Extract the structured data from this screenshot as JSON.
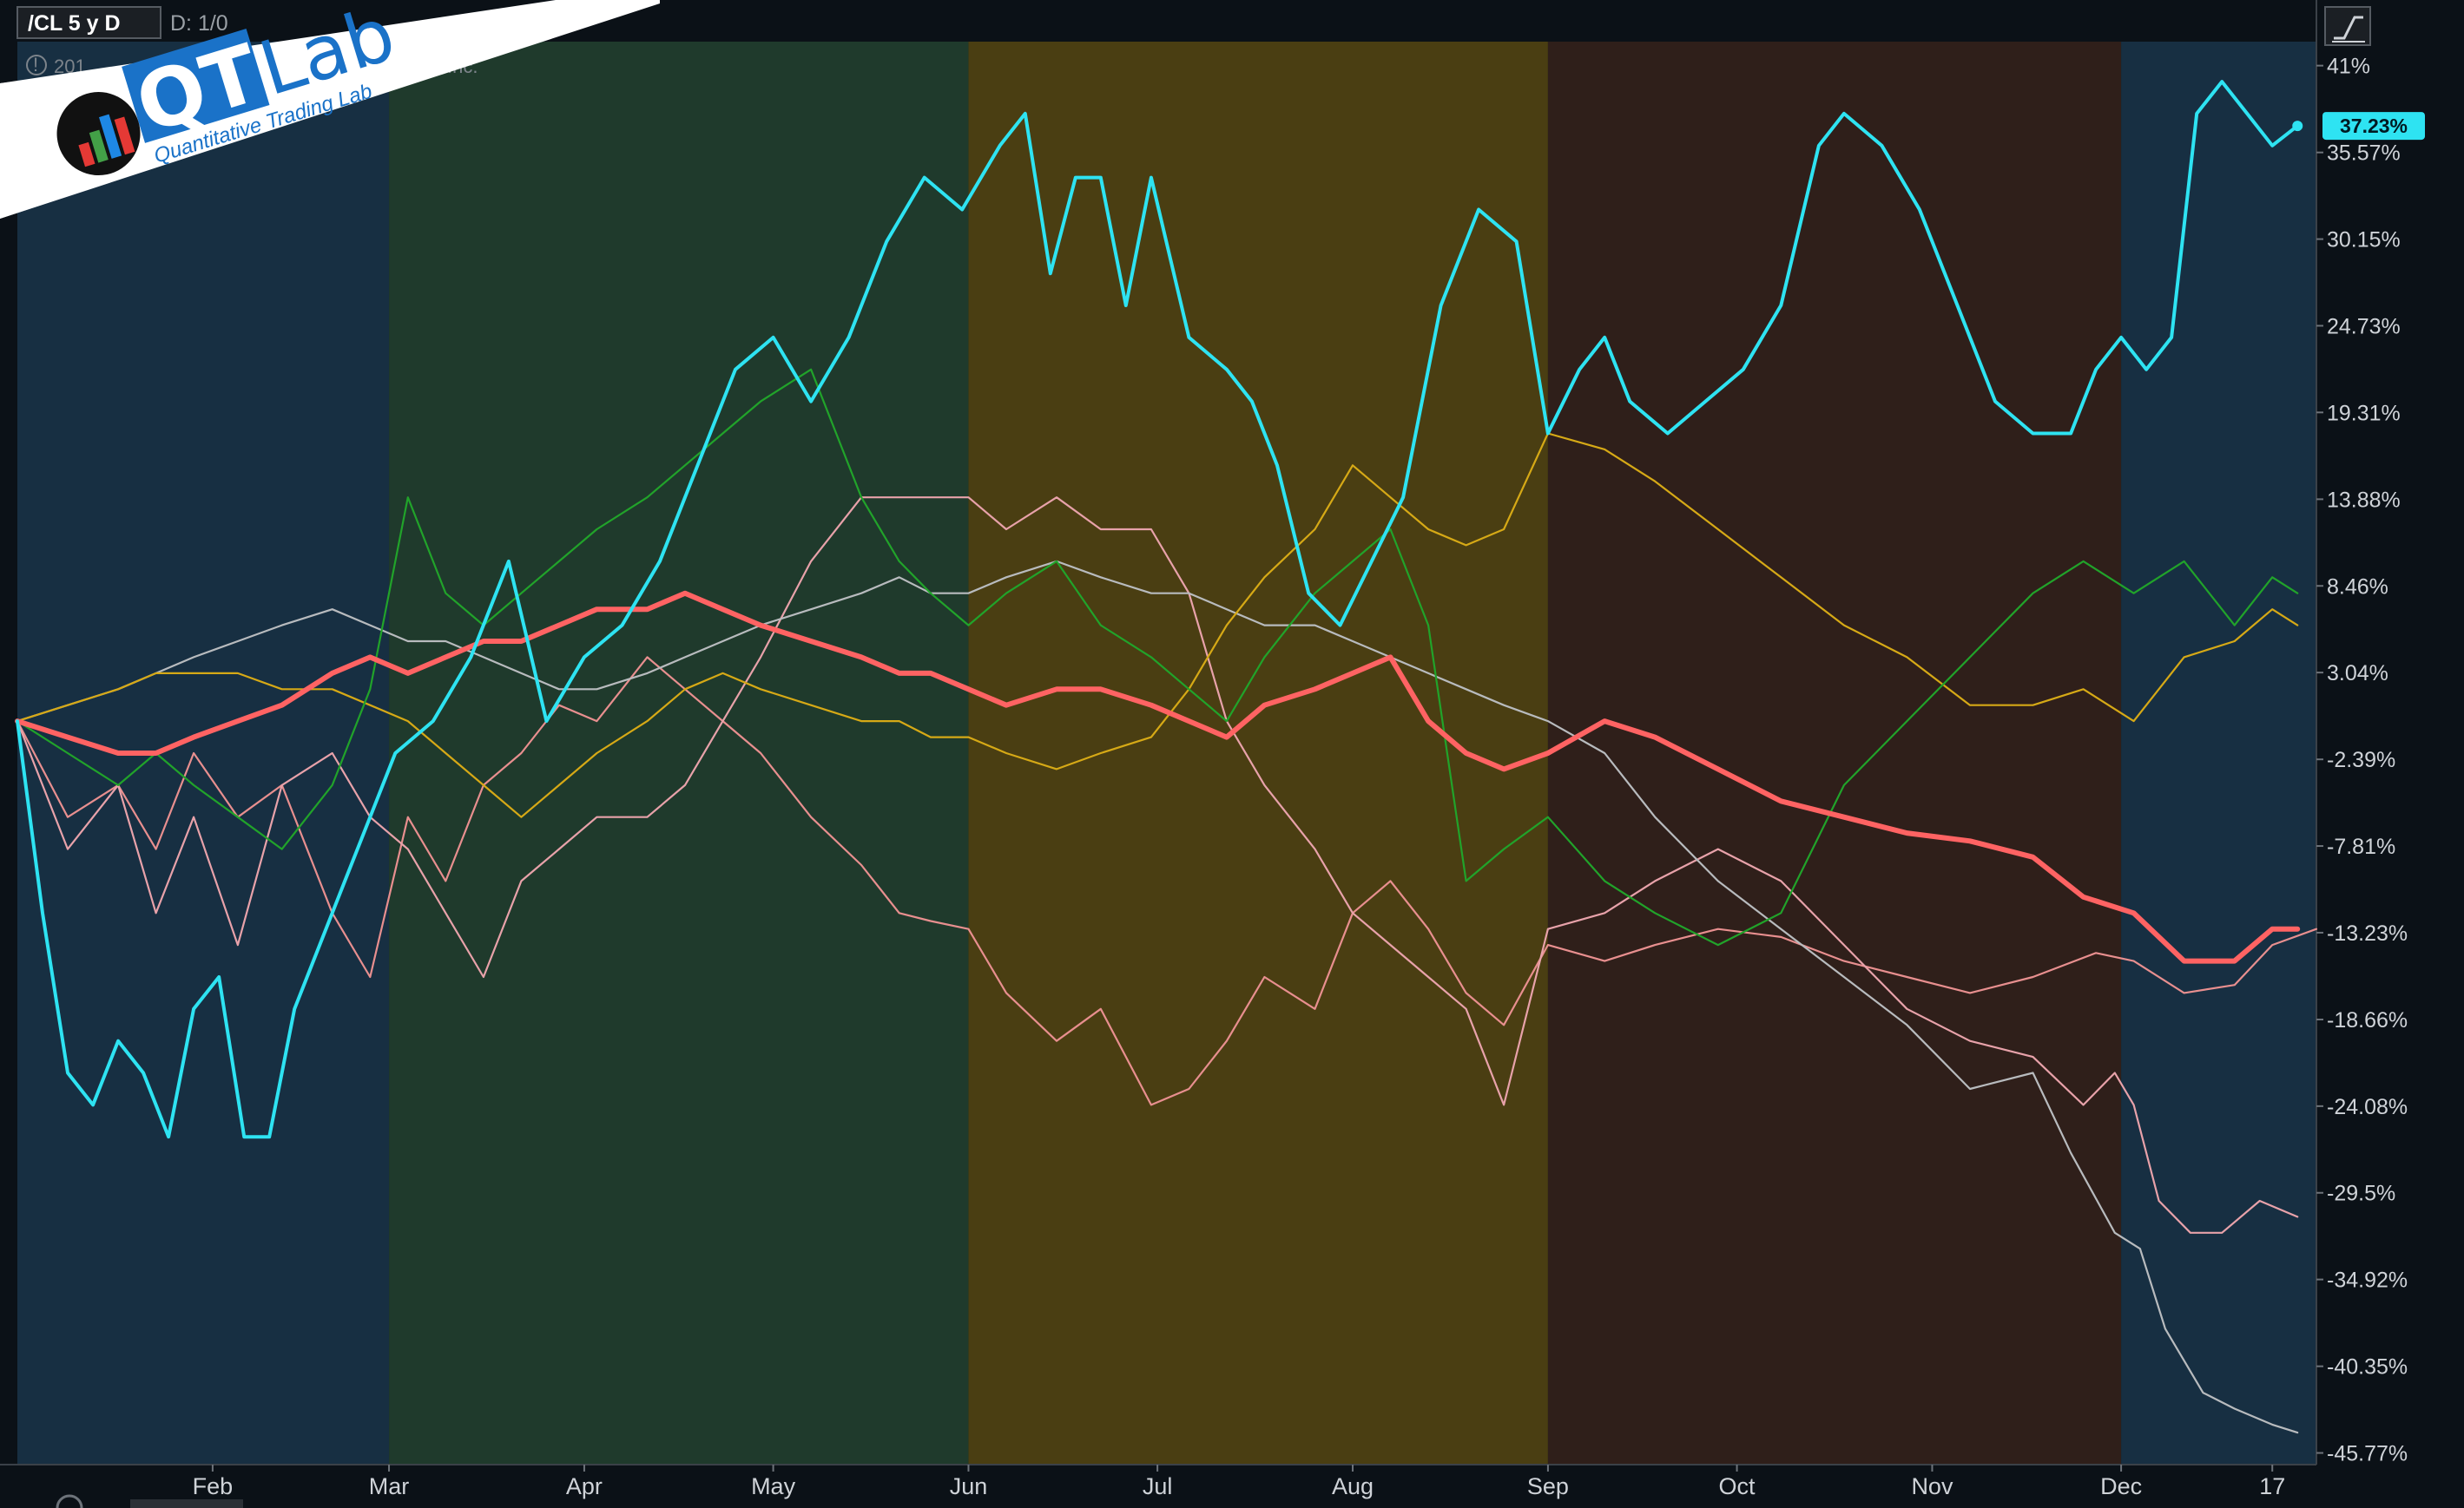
{
  "header": {
    "symbol": "/CL 5 y D",
    "aggregation": "D: 1/0",
    "info_text": "201",
    "info_suffix": "Inc."
  },
  "logo": {
    "brand_qt": "QT",
    "brand_lab": "Lab",
    "tagline": "Quantitative Trading Lab"
  },
  "colors": {
    "background": "#0b1117",
    "season_winter": "#172f42",
    "season_spring": "#1f3a2c",
    "season_summer": "#4a3e12",
    "season_fall": "#2f1f1a",
    "axis_text": "#cfd3d8"
  },
  "chart_data": {
    "type": "line",
    "title": "",
    "xlabel": "",
    "ylabel": "",
    "x_tick_labels": [
      "Feb",
      "Mar",
      "Apr",
      "May",
      "Jun",
      "Jul",
      "Aug",
      "Sep",
      "Oct",
      "Nov",
      "Dec",
      "17"
    ],
    "y_tick_labels": [
      "41%",
      "35.57%",
      "30.15%",
      "24.73%",
      "19.31%",
      "13.88%",
      "8.46%",
      "3.04%",
      "-2.39%",
      "-7.81%",
      "-13.23%",
      "-18.66%",
      "-24.08%",
      "-29.5%",
      "-34.92%",
      "-40.35%",
      "-45.77%"
    ],
    "ylim": [
      -46.5,
      42.5
    ],
    "grid": false,
    "legend": "none",
    "last_value_label": "37.23%",
    "season_bands": [
      {
        "season": "winter",
        "from_day": 0,
        "to_day": 59
      },
      {
        "season": "spring",
        "from_day": 59,
        "to_day": 151
      },
      {
        "season": "summer",
        "from_day": 151,
        "to_day": 243
      },
      {
        "season": "fall",
        "from_day": 243,
        "to_day": 334
      },
      {
        "season": "winter",
        "from_day": 334,
        "to_day": 365
      }
    ],
    "series": [
      {
        "color": "#e88f8f",
        "width": 2.2,
        "x": [
          0,
          8,
          16,
          22,
          28,
          35,
          42,
          50,
          56,
          62,
          68,
          74,
          80,
          86,
          92,
          100,
          106,
          112,
          118,
          126,
          134,
          140,
          145,
          151,
          157,
          165,
          172,
          180,
          186,
          192,
          198,
          206,
          212,
          218,
          224,
          230,
          236,
          243,
          252,
          260,
          270,
          280,
          290,
          300,
          310,
          320,
          330,
          336,
          344,
          352,
          358,
          365
        ],
        "values": [
          0,
          -6,
          -4,
          -8,
          -2,
          -6,
          -4,
          -12,
          -16,
          -6,
          -10,
          -4,
          -2,
          1,
          0,
          4,
          2,
          0,
          -2,
          -6,
          -9,
          -12,
          -12.5,
          -13,
          -17,
          -20,
          -18,
          -24,
          -23,
          -20,
          -16,
          -18,
          -12,
          -10,
          -13,
          -17,
          -19,
          -14,
          -15,
          -14,
          -13,
          -13.5,
          -15,
          -16,
          -17,
          -16,
          -14.5,
          -15,
          -17,
          -16.5,
          -14,
          -13
        ]
      },
      {
        "color": "#e8a2aa",
        "width": 2.2,
        "x": [
          0,
          8,
          16,
          22,
          28,
          35,
          42,
          50,
          56,
          62,
          68,
          74,
          80,
          86,
          92,
          100,
          106,
          112,
          118,
          126,
          134,
          140,
          145,
          151,
          157,
          165,
          172,
          180,
          186,
          192,
          198,
          206,
          212,
          218,
          224,
          230,
          236,
          243,
          252,
          260,
          270,
          280,
          290,
          300,
          310,
          320,
          328,
          333,
          336,
          340,
          345,
          350,
          356,
          362
        ],
        "values": [
          0,
          -8,
          -4,
          -12,
          -6,
          -14,
          -4,
          -2,
          -6,
          -8,
          -12,
          -16,
          -10,
          -8,
          -6,
          -6,
          -4,
          0,
          4,
          10,
          14,
          14,
          14,
          14,
          12,
          14,
          12,
          12,
          8,
          0,
          -4,
          -8,
          -12,
          -14,
          -16,
          -18,
          -24,
          -13,
          -12,
          -10,
          -8,
          -10,
          -14,
          -18,
          -20,
          -21,
          -24,
          -22,
          -24,
          -30,
          -32,
          -32,
          -30,
          -31
        ]
      },
      {
        "color": "#b8bbbe",
        "width": 2.2,
        "x": [
          0,
          8,
          16,
          22,
          28,
          35,
          42,
          50,
          56,
          62,
          68,
          74,
          80,
          86,
          92,
          100,
          106,
          112,
          118,
          126,
          134,
          140,
          145,
          151,
          157,
          165,
          172,
          180,
          186,
          192,
          198,
          206,
          212,
          218,
          224,
          230,
          236,
          243,
          252,
          260,
          270,
          280,
          290,
          300,
          310,
          320,
          326,
          333,
          337,
          341,
          347,
          352,
          358,
          362
        ],
        "values": [
          0,
          1,
          2,
          3,
          4,
          5,
          6,
          7,
          6,
          5,
          5,
          4,
          3,
          2,
          2,
          3,
          4,
          5,
          6,
          7,
          8,
          9,
          8,
          8,
          9,
          10,
          9,
          8,
          8,
          7,
          6,
          6,
          5,
          4,
          3,
          2,
          1,
          0,
          -2,
          -6,
          -10,
          -13,
          -16,
          -19,
          -23,
          -22,
          -27,
          -32,
          -33,
          -38,
          -42,
          -43,
          -44,
          -44.5
        ]
      },
      {
        "color": "#d6a916",
        "width": 2.2,
        "x": [
          0,
          8,
          16,
          22,
          28,
          35,
          42,
          50,
          56,
          62,
          68,
          74,
          80,
          86,
          92,
          100,
          106,
          112,
          118,
          126,
          134,
          140,
          145,
          151,
          157,
          165,
          172,
          180,
          186,
          192,
          198,
          206,
          212,
          218,
          224,
          230,
          236,
          243,
          252,
          260,
          270,
          280,
          290,
          300,
          310,
          320,
          328,
          336,
          344,
          352,
          358,
          362
        ],
        "values": [
          0,
          1,
          2,
          3,
          3,
          3,
          2,
          2,
          1,
          0,
          -2,
          -4,
          -6,
          -4,
          -2,
          0,
          2,
          3,
          2,
          1,
          0,
          0,
          -1,
          -1,
          -2,
          -3,
          -2,
          -1,
          2,
          6,
          9,
          12,
          16,
          14,
          12,
          11,
          12,
          18,
          17,
          15,
          12,
          9,
          6,
          4,
          1,
          1,
          2,
          0,
          4,
          5,
          7,
          6
        ]
      },
      {
        "color": "#21a32a",
        "width": 2.2,
        "x": [
          0,
          8,
          16,
          22,
          28,
          35,
          42,
          50,
          56,
          62,
          68,
          74,
          80,
          86,
          92,
          100,
          106,
          112,
          118,
          126,
          134,
          140,
          145,
          151,
          157,
          165,
          172,
          180,
          186,
          192,
          198,
          206,
          212,
          218,
          224,
          230,
          236,
          243,
          252,
          260,
          270,
          280,
          290,
          300,
          310,
          320,
          328,
          336,
          344,
          352,
          358,
          362
        ],
        "values": [
          0,
          -2,
          -4,
          -2,
          -4,
          -6,
          -8,
          -4,
          2,
          14,
          8,
          6,
          8,
          10,
          12,
          14,
          16,
          18,
          20,
          22,
          14,
          10,
          8,
          6,
          8,
          10,
          6,
          4,
          2,
          0,
          4,
          8,
          10,
          12,
          6,
          -10,
          -8,
          -6,
          -10,
          -12,
          -14,
          -12,
          -4,
          0,
          4,
          8,
          10,
          8,
          10,
          6,
          9,
          8
        ]
      },
      {
        "color": "#ff6363",
        "width": 6,
        "x": [
          0,
          8,
          16,
          22,
          28,
          35,
          42,
          50,
          56,
          62,
          68,
          74,
          80,
          86,
          92,
          100,
          106,
          112,
          118,
          126,
          134,
          140,
          145,
          151,
          157,
          165,
          172,
          180,
          186,
          192,
          198,
          206,
          212,
          218,
          224,
          230,
          236,
          243,
          252,
          260,
          270,
          280,
          290,
          300,
          310,
          320,
          328,
          336,
          344,
          352,
          358,
          362
        ],
        "values": [
          0,
          -1,
          -2,
          -2,
          -1,
          0,
          1,
          3,
          4,
          3,
          4,
          5,
          5,
          6,
          7,
          7,
          8,
          7,
          6,
          5,
          4,
          3,
          3,
          2,
          1,
          2,
          2,
          1,
          0,
          -1,
          1,
          2,
          3,
          4,
          0,
          -2,
          -3,
          -2,
          0,
          -1,
          -3,
          -5,
          -6,
          -7,
          -7.5,
          -8.5,
          -11,
          -12,
          -15,
          -15,
          -13,
          -13
        ]
      },
      {
        "color": "#2ee3f2",
        "width": 4,
        "x": [
          0,
          4,
          8,
          12,
          16,
          20,
          24,
          28,
          32,
          36,
          40,
          44,
          48,
          52,
          56,
          60,
          66,
          72,
          78,
          84,
          90,
          96,
          102,
          108,
          114,
          120,
          126,
          132,
          138,
          144,
          150,
          156,
          160,
          164,
          168,
          172,
          176,
          180,
          186,
          192,
          196,
          200,
          205,
          210,
          215,
          220,
          226,
          232,
          238,
          243,
          248,
          252,
          256,
          262,
          268,
          274,
          280,
          286,
          290,
          296,
          302,
          308,
          314,
          320,
          326,
          330,
          334,
          338,
          342,
          346,
          350,
          354,
          358,
          362
        ],
        "values": [
          0,
          -12,
          -22,
          -24,
          -20,
          -22,
          -26,
          -18,
          -16,
          -26,
          -26,
          -18,
          -14,
          -10,
          -6,
          -2,
          0,
          4,
          10,
          0,
          4,
          6,
          10,
          16,
          22,
          24,
          20,
          24,
          30,
          34,
          32,
          36,
          38,
          28,
          34,
          34,
          26,
          34,
          24,
          22,
          20,
          16,
          8,
          6,
          10,
          14,
          26,
          32,
          30,
          18,
          22,
          24,
          20,
          18,
          20,
          22,
          26,
          36,
          38,
          36,
          32,
          26,
          20,
          18,
          18,
          22,
          24,
          22,
          24,
          38,
          40,
          38,
          36,
          37.23
        ]
      }
    ]
  }
}
